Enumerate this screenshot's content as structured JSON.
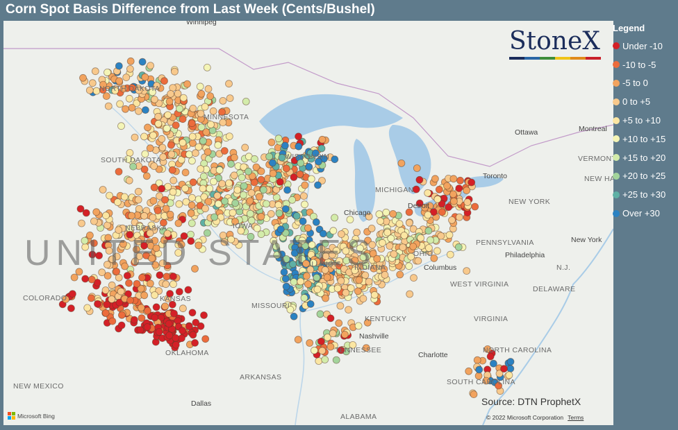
{
  "title": "Corn Spot Basis Difference from Last Week (Cents/Bushel)",
  "logo": {
    "text": "StoneX",
    "tm": "™",
    "bar_colors": [
      "#1b2d5b",
      "#2a66a5",
      "#3e8e3a",
      "#f0c418",
      "#e08a1a",
      "#c9202a"
    ]
  },
  "legend": {
    "title": "Legend",
    "items": [
      {
        "label": "Under -10",
        "color": "#d42027"
      },
      {
        "label": "-10 to -5",
        "color": "#ec6c3c"
      },
      {
        "label": "-5 to 0",
        "color": "#f2a35e"
      },
      {
        "label": "0 to +5",
        "color": "#f8c98c"
      },
      {
        "label": "+5 to +10",
        "color": "#fbe6a2"
      },
      {
        "label": "+10 to +15",
        "color": "#f4f5b6"
      },
      {
        "label": "+15 to +20",
        "color": "#d3ecaa"
      },
      {
        "label": "+20 to +25",
        "color": "#a3d49b"
      },
      {
        "label": "+25 to +30",
        "color": "#5fb0a5"
      },
      {
        "label": "Over +30",
        "color": "#2b82c2"
      }
    ]
  },
  "map": {
    "watermark": "UNITED STATES",
    "state_labels": [
      "NORTH DAKOTA",
      "MINNESOTA",
      "SOUTH DAKOTA",
      "WISCONSIN",
      "NEBRASKA",
      "IOWA",
      "MICHIGAN",
      "ILLINOIS",
      "INDIANA",
      "OHIO",
      "PENNSYLVANIA",
      "NEW YORK",
      "COLORADO",
      "KANSAS",
      "MISSOURI",
      "KENTUCKY",
      "WEST VIRGINIA",
      "VIRGINIA",
      "TENNESSEE",
      "NORTH CAROLINA",
      "SOUTH CAROLINA",
      "OKLAHOMA",
      "ARKANSAS",
      "NEW MEXICO",
      "ALABAMA",
      "VERMONT",
      "NEW HAMPSHIRE",
      "DELAWARE",
      "N.J."
    ],
    "cities": [
      "Winnipeg",
      "Ottawa",
      "Montreal",
      "Toronto",
      "Chicago",
      "Detroit",
      "Columbus",
      "Philadelphia",
      "New York",
      "Nashville",
      "Charlotte",
      "Dallas"
    ],
    "source": "Source: DTN ProphetX",
    "copyright": "© 2022 Microsoft Corporation",
    "terms": "Terms",
    "provider": "Microsoft Bing"
  }
}
